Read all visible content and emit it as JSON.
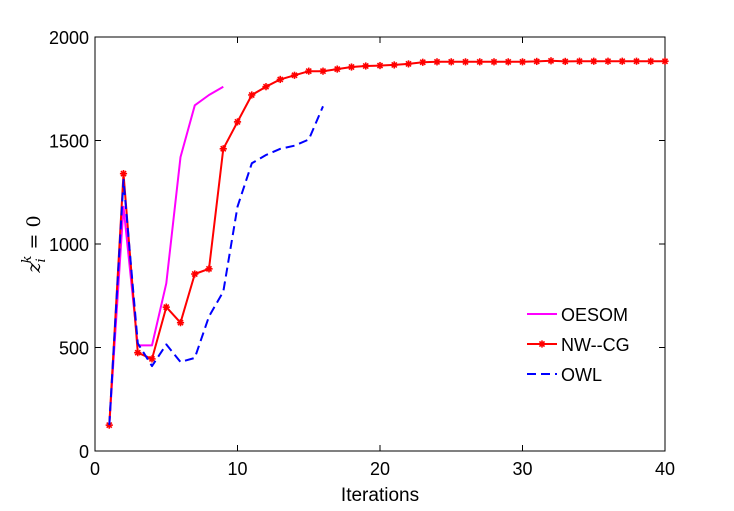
{
  "chart_data": {
    "type": "line",
    "title": "",
    "xlabel": "Iterations",
    "ylabel": "z_i^k = 0",
    "ylabel_parts": {
      "base": "z",
      "sub": "i",
      "sup": "k",
      "rest": "= 0"
    },
    "xlim": [
      0,
      40
    ],
    "ylim": [
      0,
      2000
    ],
    "xticks": [
      0,
      10,
      20,
      30,
      40
    ],
    "yticks": [
      0,
      500,
      1000,
      1500,
      2000
    ],
    "grid": false,
    "legend_position": "right",
    "series": [
      {
        "name": "OESOM",
        "color": "#ff00ff",
        "style": "solid",
        "marker": "none",
        "x": [
          1,
          2,
          3,
          4,
          5,
          6,
          7,
          8,
          9
        ],
        "y": [
          125,
          1180,
          510,
          510,
          810,
          1420,
          1670,
          1720,
          1760
        ]
      },
      {
        "name": "NW--CG",
        "color": "#ff0000",
        "style": "solid",
        "marker": "star",
        "x": [
          1,
          2,
          3,
          4,
          5,
          6,
          7,
          8,
          9,
          10,
          11,
          12,
          13,
          14,
          15,
          16,
          17,
          18,
          19,
          20,
          21,
          22,
          23,
          24,
          25,
          26,
          27,
          28,
          29,
          30,
          31,
          32,
          33,
          34,
          35,
          36,
          37,
          38,
          39,
          40
        ],
        "y": [
          125,
          1340,
          475,
          445,
          695,
          620,
          855,
          880,
          1460,
          1590,
          1720,
          1760,
          1795,
          1815,
          1835,
          1835,
          1845,
          1855,
          1860,
          1862,
          1865,
          1870,
          1878,
          1880,
          1880,
          1880,
          1880,
          1880,
          1880,
          1880,
          1882,
          1885,
          1882,
          1883,
          1883,
          1883,
          1883,
          1883,
          1883,
          1883
        ]
      },
      {
        "name": "OWL",
        "color": "#0000ff",
        "style": "dashed",
        "marker": "none",
        "x": [
          1,
          2,
          3,
          4,
          5,
          6,
          7,
          8,
          9,
          10,
          11,
          12,
          13,
          14,
          15,
          16
        ],
        "y": [
          125,
          1310,
          520,
          410,
          515,
          430,
          450,
          650,
          770,
          1180,
          1390,
          1430,
          1460,
          1475,
          1505,
          1665
        ]
      }
    ]
  }
}
